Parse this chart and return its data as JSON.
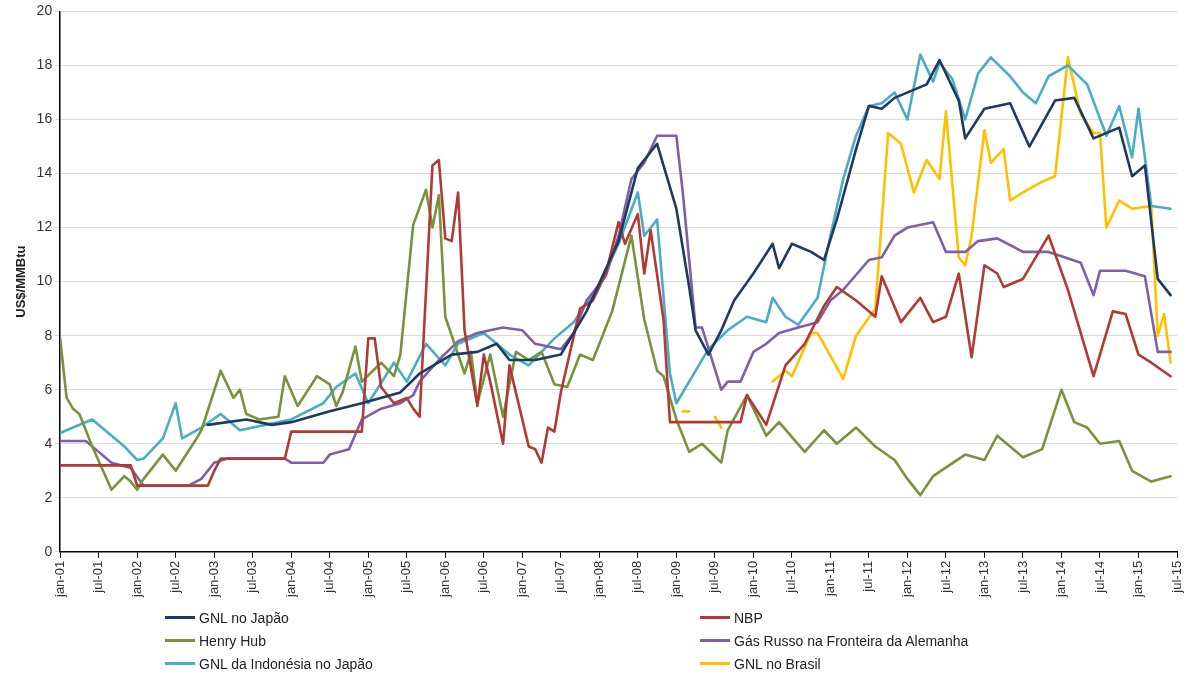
{
  "chart_data": {
    "type": "line",
    "ylabel": "US$/MMBtu",
    "xlim": [
      "2001-01",
      "2015-07"
    ],
    "ylim": [
      0,
      20
    ],
    "yticks": [
      0,
      2,
      4,
      6,
      8,
      10,
      12,
      14,
      16,
      18,
      20
    ],
    "xticks": [
      {
        "value": "2001-01",
        "label": "jan-01"
      },
      {
        "value": "2001-07",
        "label": "jul-01"
      },
      {
        "value": "2002-01",
        "label": "jan-02"
      },
      {
        "value": "2002-07",
        "label": "jul-02"
      },
      {
        "value": "2003-01",
        "label": "jan-03"
      },
      {
        "value": "2003-07",
        "label": "jul-03"
      },
      {
        "value": "2004-01",
        "label": "jan-04"
      },
      {
        "value": "2004-07",
        "label": "jul-04"
      },
      {
        "value": "2005-01",
        "label": "jan-05"
      },
      {
        "value": "2005-07",
        "label": "jul-05"
      },
      {
        "value": "2006-01",
        "label": "jan-06"
      },
      {
        "value": "2006-07",
        "label": "jul-06"
      },
      {
        "value": "2007-01",
        "label": "jan-07"
      },
      {
        "value": "2007-07",
        "label": "jul-07"
      },
      {
        "value": "2008-01",
        "label": "jan-08"
      },
      {
        "value": "2008-07",
        "label": "jul-08"
      },
      {
        "value": "2009-01",
        "label": "jan-09"
      },
      {
        "value": "2009-07",
        "label": "jul-09"
      },
      {
        "value": "2010-01",
        "label": "jan-10"
      },
      {
        "value": "2010-07",
        "label": "jul-10"
      },
      {
        "value": "2011-01",
        "label": "jan-11"
      },
      {
        "value": "2011-07",
        "label": "jul-11"
      },
      {
        "value": "2012-01",
        "label": "jan-12"
      },
      {
        "value": "2012-07",
        "label": "jul-12"
      },
      {
        "value": "2013-01",
        "label": "jan-13"
      },
      {
        "value": "2013-07",
        "label": "jul-13"
      },
      {
        "value": "2014-01",
        "label": "jan-14"
      },
      {
        "value": "2014-07",
        "label": "jul-14"
      },
      {
        "value": "2015-01",
        "label": "jan-15"
      },
      {
        "value": "2015-07",
        "label": "jul-15"
      }
    ],
    "grid": "y",
    "legend": "bottom",
    "marker": "none",
    "line_style": "solid",
    "series": [
      {
        "name": "GNL no Japão",
        "color": "#1f3a5f",
        "x": [
          "2002-12",
          "2003-06",
          "2003-10",
          "2004-01",
          "2004-07",
          "2004-12",
          "2005-06",
          "2005-09",
          "2006-02",
          "2006-06",
          "2006-09",
          "2006-11",
          "2007-03",
          "2007-07",
          "2007-11",
          "2008-04",
          "2008-07",
          "2008-10",
          "2009-01",
          "2009-03",
          "2009-04",
          "2009-06",
          "2009-08",
          "2009-10",
          "2010-01",
          "2010-04",
          "2010-05",
          "2010-07",
          "2010-10",
          "2010-12",
          "2011-02",
          "2011-05",
          "2011-07",
          "2011-09",
          "2011-11",
          "2012-04",
          "2012-06",
          "2012-09",
          "2012-10",
          "2013-01",
          "2013-05",
          "2013-08",
          "2013-12",
          "2014-03",
          "2014-06",
          "2014-10",
          "2014-12",
          "2015-02",
          "2015-04",
          "2015-06"
        ],
        "values": [
          4.7,
          4.9,
          4.7,
          4.8,
          5.2,
          5.5,
          5.9,
          6.6,
          7.3,
          7.4,
          7.7,
          7.1,
          7.1,
          7.3,
          8.9,
          11.5,
          14.2,
          15.1,
          12.7,
          9.8,
          8.2,
          7.3,
          8.2,
          9.3,
          10.3,
          11.4,
          10.5,
          11.4,
          11.1,
          10.8,
          12.3,
          14.9,
          16.5,
          16.4,
          16.8,
          17.3,
          18.2,
          16.7,
          15.3,
          16.4,
          16.6,
          15.0,
          16.7,
          16.8,
          15.3,
          15.7,
          13.9,
          14.3,
          10.1,
          9.5
        ]
      },
      {
        "name": "NBP",
        "color": "#b23a36",
        "x": [
          "2001-01",
          "2001-12",
          "2002-01",
          "2002-12",
          "2003-01",
          "2003-02",
          "2003-12",
          "2004-01",
          "2004-12",
          "2005-01",
          "2005-02",
          "2005-03",
          "2005-05",
          "2005-07",
          "2005-08",
          "2005-09",
          "2005-11",
          "2005-12",
          "2006-01",
          "2006-02",
          "2006-03",
          "2006-04",
          "2006-06",
          "2006-07",
          "2006-08",
          "2006-10",
          "2006-11",
          "2007-02",
          "2007-03",
          "2007-04",
          "2007-05",
          "2007-06",
          "2007-07",
          "2007-10",
          "2007-12",
          "2008-02",
          "2008-04",
          "2008-05",
          "2008-07",
          "2008-08",
          "2008-09",
          "2008-11",
          "2008-12",
          "2009-11",
          "2009-12",
          "2010-03",
          "2010-06",
          "2010-09",
          "2010-12",
          "2011-02",
          "2011-05",
          "2011-08",
          "2011-09",
          "2011-12",
          "2012-03",
          "2012-05",
          "2012-07",
          "2012-09",
          "2012-11",
          "2013-01",
          "2013-03",
          "2013-04",
          "2013-07",
          "2013-11",
          "2014-02",
          "2014-06",
          "2014-09",
          "2014-11",
          "2015-01",
          "2015-03",
          "2015-06"
        ],
        "values": [
          3.2,
          3.2,
          2.45,
          2.45,
          3.0,
          3.45,
          3.45,
          4.45,
          4.45,
          7.9,
          7.9,
          6.1,
          5.5,
          5.7,
          5.3,
          5.0,
          14.3,
          14.5,
          11.6,
          11.5,
          13.3,
          8.2,
          5.4,
          7.3,
          6.3,
          4.0,
          6.9,
          3.9,
          3.8,
          3.3,
          4.6,
          4.45,
          5.9,
          9.0,
          9.3,
          10.3,
          12.2,
          11.4,
          12.5,
          10.3,
          11.9,
          8.6,
          4.8,
          4.8,
          5.8,
          4.7,
          6.9,
          7.7,
          9.1,
          9.8,
          9.3,
          8.7,
          10.2,
          8.5,
          9.4,
          8.5,
          8.7,
          10.3,
          7.2,
          10.6,
          10.3,
          9.8,
          10.1,
          11.7,
          9.7,
          6.5,
          8.9,
          8.8,
          7.3,
          7.0,
          6.5
        ]
      },
      {
        "name": "Henry Hub",
        "color": "#77933c",
        "x": [
          "2001-01",
          "2001-02",
          "2001-03",
          "2001-04",
          "2001-06",
          "2001-09",
          "2001-11",
          "2001-12",
          "2002-01",
          "2002-02",
          "2002-05",
          "2002-07",
          "2002-10",
          "2002-11",
          "2003-02",
          "2003-04",
          "2003-05",
          "2003-06",
          "2003-08",
          "2003-11",
          "2003-12",
          "2004-02",
          "2004-05",
          "2004-07",
          "2004-08",
          "2004-09",
          "2004-11",
          "2004-12",
          "2005-03",
          "2005-05",
          "2005-06",
          "2005-08",
          "2005-10",
          "2005-11",
          "2005-12",
          "2006-01",
          "2006-03",
          "2006-04",
          "2006-05",
          "2006-06",
          "2006-08",
          "2006-10",
          "2006-12",
          "2007-02",
          "2007-04",
          "2007-06",
          "2007-08",
          "2007-10",
          "2007-12",
          "2008-03",
          "2008-06",
          "2008-08",
          "2008-10",
          "2008-11",
          "2009-01",
          "2009-03",
          "2009-05",
          "2009-08",
          "2009-09",
          "2009-12",
          "2010-03",
          "2010-05",
          "2010-09",
          "2010-12",
          "2011-02",
          "2011-05",
          "2011-08",
          "2011-11",
          "2012-01",
          "2012-03",
          "2012-05",
          "2012-10",
          "2013-01",
          "2013-03",
          "2013-07",
          "2013-10",
          "2014-01",
          "2014-03",
          "2014-05",
          "2014-07",
          "2014-10",
          "2014-12",
          "2015-03",
          "2015-06"
        ],
        "values": [
          7.9,
          5.7,
          5.3,
          5.1,
          3.9,
          2.3,
          2.8,
          2.6,
          2.3,
          2.7,
          3.6,
          3.0,
          4.1,
          4.5,
          6.7,
          5.7,
          6.0,
          5.1,
          4.9,
          5.0,
          6.5,
          5.4,
          6.5,
          6.2,
          5.4,
          5.9,
          7.6,
          6.3,
          7.0,
          6.5,
          7.3,
          12.1,
          13.4,
          12.0,
          13.2,
          8.7,
          7.3,
          6.6,
          7.4,
          5.5,
          7.3,
          5.0,
          7.4,
          7.1,
          7.4,
          6.2,
          6.1,
          7.3,
          7.1,
          8.9,
          11.7,
          8.6,
          6.7,
          6.5,
          4.9,
          3.7,
          4.0,
          3.3,
          4.5,
          5.8,
          4.3,
          4.8,
          3.7,
          4.5,
          4.0,
          4.6,
          3.9,
          3.4,
          2.7,
          2.1,
          2.8,
          3.6,
          3.4,
          4.3,
          3.5,
          3.8,
          6.0,
          4.8,
          4.6,
          4.0,
          4.1,
          3.0,
          2.6,
          2.8
        ]
      },
      {
        "name": "Gás Russo na Fronteira da Alemanha",
        "color": "#7f5fa5",
        "x": [
          "2001-01",
          "2001-05",
          "2001-07",
          "2001-09",
          "2001-12",
          "2002-02",
          "2002-09",
          "2002-11",
          "2003-01",
          "2003-03",
          "2003-12",
          "2004-01",
          "2004-06",
          "2004-07",
          "2004-10",
          "2004-12",
          "2005-03",
          "2005-06",
          "2005-08",
          "2005-09",
          "2005-12",
          "2006-03",
          "2006-06",
          "2006-10",
          "2007-01",
          "2007-03",
          "2007-07",
          "2007-09",
          "2007-11",
          "2008-02",
          "2008-04",
          "2008-06",
          "2008-08",
          "2008-10",
          "2009-01",
          "2009-02",
          "2009-04",
          "2009-05",
          "2009-08",
          "2009-09",
          "2009-11",
          "2010-01",
          "2010-03",
          "2010-05",
          "2010-08",
          "2010-11",
          "2011-01",
          "2011-03",
          "2011-07",
          "2011-09",
          "2011-11",
          "2012-01",
          "2012-05",
          "2012-07",
          "2012-10",
          "2012-12",
          "2013-03",
          "2013-07",
          "2013-11",
          "2014-04",
          "2014-06",
          "2014-07",
          "2014-11",
          "2015-02",
          "2015-04",
          "2015-06"
        ],
        "values": [
          4.1,
          4.1,
          3.7,
          3.3,
          3.1,
          2.45,
          2.45,
          2.7,
          3.3,
          3.45,
          3.45,
          3.3,
          3.3,
          3.6,
          3.8,
          4.9,
          5.3,
          5.5,
          5.8,
          6.3,
          7.1,
          7.8,
          8.1,
          8.3,
          8.2,
          7.7,
          7.5,
          8.1,
          9.3,
          10.2,
          11.7,
          13.8,
          14.4,
          15.4,
          15.4,
          13.3,
          8.3,
          8.3,
          6.0,
          6.3,
          6.3,
          7.4,
          7.7,
          8.1,
          8.3,
          8.5,
          9.3,
          9.7,
          10.8,
          10.9,
          11.7,
          12.0,
          12.2,
          11.1,
          11.1,
          11.5,
          11.6,
          11.1,
          11.1,
          10.7,
          9.5,
          10.4,
          10.4,
          10.2,
          7.4,
          7.4
        ]
      },
      {
        "name": "GNL da Indonésia no Japão",
        "color": "#4bacc6",
        "x": [
          "2001-01",
          "2001-03",
          "2001-06",
          "2001-08",
          "2001-11",
          "2002-01",
          "2002-02",
          "2002-05",
          "2002-07",
          "2002-08",
          "2002-11",
          "2003-02",
          "2003-05",
          "2003-09",
          "2004-01",
          "2004-06",
          "2004-08",
          "2004-11",
          "2005-01",
          "2005-05",
          "2005-07",
          "2005-10",
          "2006-01",
          "2006-03",
          "2006-07",
          "2006-11",
          "2007-02",
          "2007-06",
          "2007-09",
          "2008-01",
          "2008-04",
          "2008-07",
          "2008-08",
          "2008-10",
          "2008-12",
          "2009-01",
          "2009-06",
          "2009-09",
          "2009-12",
          "2010-03",
          "2010-04",
          "2010-06",
          "2010-08",
          "2010-11",
          "2011-01",
          "2011-03",
          "2011-05",
          "2011-07",
          "2011-09",
          "2011-11",
          "2012-01",
          "2012-03",
          "2012-05",
          "2012-06",
          "2012-08",
          "2012-10",
          "2012-12",
          "2013-02",
          "2013-05",
          "2013-07",
          "2013-09",
          "2013-11",
          "2014-02",
          "2014-05",
          "2014-08",
          "2014-10",
          "2014-12",
          "2015-01",
          "2015-03",
          "2015-06"
        ],
        "values": [
          4.4,
          4.6,
          4.9,
          4.5,
          3.9,
          3.4,
          3.45,
          4.2,
          5.5,
          4.2,
          4.6,
          5.1,
          4.5,
          4.7,
          4.9,
          5.5,
          6.1,
          6.6,
          5.5,
          7.0,
          6.3,
          7.7,
          6.9,
          7.7,
          8.1,
          7.3,
          6.9,
          7.9,
          8.5,
          9.9,
          11.4,
          13.3,
          11.7,
          12.3,
          6.6,
          5.5,
          7.5,
          8.2,
          8.7,
          8.5,
          9.4,
          8.7,
          8.4,
          9.4,
          11.7,
          13.8,
          15.4,
          16.5,
          16.6,
          17.0,
          16.0,
          18.4,
          17.4,
          18.1,
          17.5,
          16.0,
          17.7,
          18.3,
          17.6,
          17.0,
          16.6,
          17.6,
          18.0,
          17.3,
          15.4,
          16.5,
          14.6,
          16.4,
          12.8,
          12.7
        ]
      },
      {
        "name": "GNL no Brasil",
        "color": "#ffc000",
        "x": [
          "2009-02",
          "2009-03",
          "2009-04",
          "2009-07",
          "2009-08",
          "2009-09",
          "2010-04",
          "2010-06",
          "2010-07",
          "2010-10",
          "2010-11",
          "2011-03",
          "2011-05",
          "2011-08",
          "2011-10",
          "2011-12",
          "2012-02",
          "2012-04",
          "2012-06",
          "2012-07",
          "2012-09",
          "2012-10",
          "2012-11",
          "2013-01",
          "2013-02",
          "2013-04",
          "2013-05",
          "2013-07",
          "2013-10",
          "2013-12",
          "2014-02",
          "2014-04",
          "2014-06",
          "2014-07",
          "2014-08",
          "2014-10",
          "2014-12",
          "2015-03",
          "2015-04",
          "2015-05",
          "2015-06"
        ],
        "values": [
          5.2,
          5.2,
          null,
          5.0,
          4.6,
          null,
          6.3,
          6.7,
          6.5,
          8.1,
          8.1,
          6.4,
          8.0,
          9.0,
          15.5,
          15.1,
          13.3,
          14.5,
          13.8,
          16.3,
          10.9,
          10.6,
          11.7,
          15.6,
          14.4,
          14.9,
          13.0,
          13.3,
          13.7,
          13.9,
          18.3,
          16.2,
          15.5,
          15.5,
          12.0,
          13.0,
          12.7,
          12.8,
          8.0,
          8.8,
          7.0
        ]
      }
    ]
  }
}
